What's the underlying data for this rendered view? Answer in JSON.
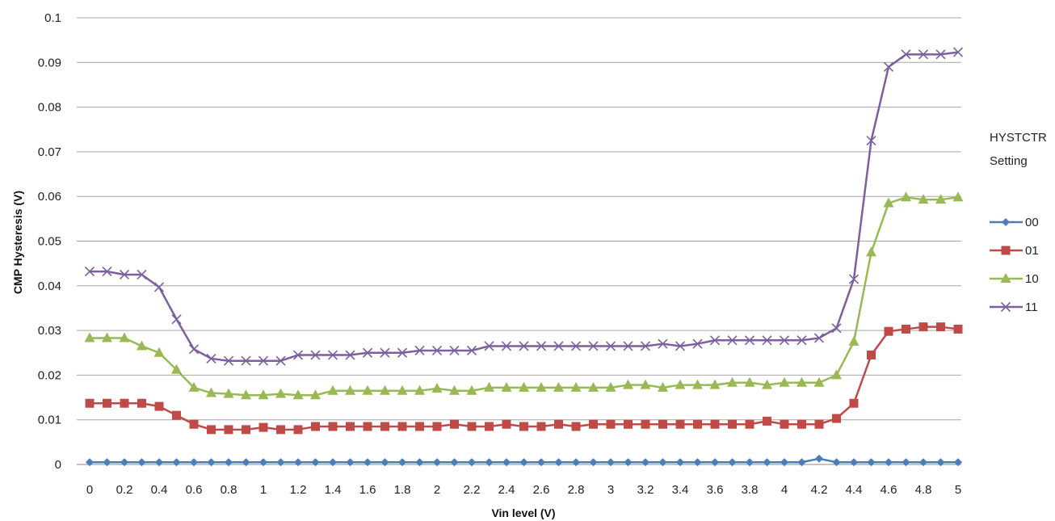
{
  "chart_data": {
    "type": "line",
    "title": "",
    "xlabel": "Vin level (V)",
    "ylabel": "CMP Hysteresis (V)",
    "xlim": [
      0,
      5
    ],
    "ylim": [
      0,
      0.1
    ],
    "x_ticks": [
      "0",
      "0.2",
      "0.4",
      "0.6",
      "0.8",
      "1",
      "1.2",
      "1.4",
      "1.6",
      "1.8",
      "2",
      "2.2",
      "2.4",
      "2.6",
      "2.8",
      "3",
      "3.2",
      "3.4",
      "3.6",
      "3.8",
      "4",
      "4.2",
      "4.4",
      "4.6",
      "4.8",
      "5"
    ],
    "y_ticks": [
      "0",
      "0.01",
      "0.02",
      "0.03",
      "0.04",
      "0.05",
      "0.06",
      "0.07",
      "0.08",
      "0.09",
      "0.1"
    ],
    "grid": "horizontal",
    "legend_title": [
      "HYSTCTR",
      "Setting"
    ],
    "legend_position": "right",
    "x": [
      0,
      0.1,
      0.2,
      0.3,
      0.4,
      0.5,
      0.6,
      0.7,
      0.8,
      0.9,
      1,
      1.1,
      1.2,
      1.3,
      1.4,
      1.5,
      1.6,
      1.7,
      1.8,
      1.9,
      2,
      2.1,
      2.2,
      2.3,
      2.4,
      2.5,
      2.6,
      2.7,
      2.8,
      2.9,
      3,
      3.1,
      3.2,
      3.3,
      3.4,
      3.5,
      3.6,
      3.7,
      3.8,
      3.9,
      4,
      4.1,
      4.2,
      4.3,
      4.4,
      4.5,
      4.6,
      4.7,
      4.8,
      4.9,
      5
    ],
    "series": [
      {
        "name": "00",
        "color": "#4A7EBB",
        "marker": "diamond",
        "values": [
          0.0005,
          0.0005,
          0.0005,
          0.0005,
          0.0005,
          0.0005,
          0.0005,
          0.0005,
          0.0005,
          0.0005,
          0.0005,
          0.0005,
          0.0005,
          0.0005,
          0.0005,
          0.0005,
          0.0005,
          0.0005,
          0.0005,
          0.0005,
          0.0005,
          0.0005,
          0.0005,
          0.0005,
          0.0005,
          0.0005,
          0.0005,
          0.0005,
          0.0005,
          0.0005,
          0.0005,
          0.0005,
          0.0005,
          0.0005,
          0.0005,
          0.0005,
          0.0005,
          0.0005,
          0.0005,
          0.0005,
          0.0005,
          0.0005,
          0.0013,
          0.0005,
          0.0005,
          0.0005,
          0.0005,
          0.0005,
          0.0005,
          0.0005,
          0.0005
        ]
      },
      {
        "name": "01",
        "color": "#BE4B48",
        "marker": "square",
        "values": [
          0.0137,
          0.0137,
          0.0137,
          0.0137,
          0.013,
          0.011,
          0.009,
          0.0078,
          0.0078,
          0.0078,
          0.0083,
          0.0078,
          0.0078,
          0.0085,
          0.0085,
          0.0085,
          0.0085,
          0.0085,
          0.0085,
          0.0085,
          0.0085,
          0.009,
          0.0085,
          0.0085,
          0.009,
          0.0085,
          0.0085,
          0.009,
          0.0085,
          0.009,
          0.009,
          0.009,
          0.009,
          0.009,
          0.009,
          0.009,
          0.009,
          0.009,
          0.009,
          0.0097,
          0.009,
          0.009,
          0.009,
          0.0103,
          0.0137,
          0.0245,
          0.0298,
          0.0303,
          0.0308,
          0.0308,
          0.0303
        ]
      },
      {
        "name": "10",
        "color": "#98B954",
        "marker": "triangle",
        "values": [
          0.0283,
          0.0283,
          0.0283,
          0.0265,
          0.025,
          0.0212,
          0.0172,
          0.016,
          0.0158,
          0.0155,
          0.0155,
          0.0158,
          0.0155,
          0.0155,
          0.0165,
          0.0165,
          0.0165,
          0.0165,
          0.0165,
          0.0165,
          0.017,
          0.0165,
          0.0165,
          0.0172,
          0.0172,
          0.0172,
          0.0172,
          0.0172,
          0.0172,
          0.0172,
          0.0172,
          0.0178,
          0.0178,
          0.0172,
          0.0178,
          0.0178,
          0.0178,
          0.0183,
          0.0183,
          0.0178,
          0.0183,
          0.0183,
          0.0183,
          0.02,
          0.0275,
          0.0475,
          0.0585,
          0.0598,
          0.0593,
          0.0593,
          0.0598
        ]
      },
      {
        "name": "11",
        "color": "#7D5FA0",
        "marker": "x",
        "values": [
          0.0432,
          0.0432,
          0.0425,
          0.0425,
          0.0397,
          0.0325,
          0.0258,
          0.0237,
          0.0232,
          0.0232,
          0.0232,
          0.0232,
          0.0245,
          0.0245,
          0.0245,
          0.0245,
          0.025,
          0.025,
          0.025,
          0.0255,
          0.0255,
          0.0255,
          0.0255,
          0.0265,
          0.0265,
          0.0265,
          0.0265,
          0.0265,
          0.0265,
          0.0265,
          0.0265,
          0.0265,
          0.0265,
          0.027,
          0.0265,
          0.027,
          0.0278,
          0.0278,
          0.0278,
          0.0278,
          0.0278,
          0.0278,
          0.0283,
          0.0305,
          0.0415,
          0.0725,
          0.089,
          0.0918,
          0.0918,
          0.0918,
          0.0923
        ]
      }
    ]
  }
}
